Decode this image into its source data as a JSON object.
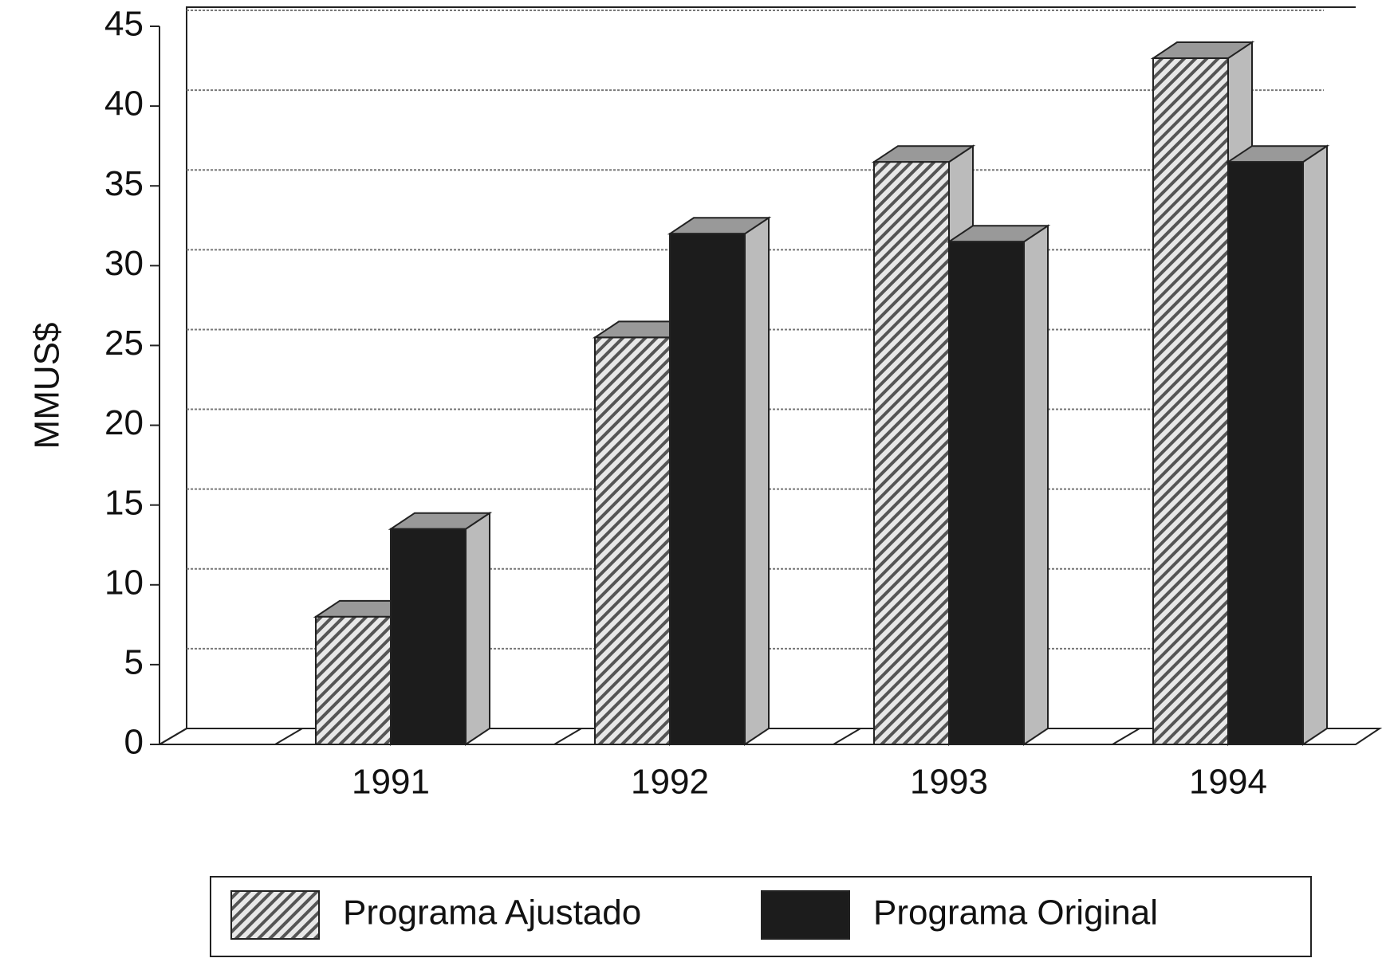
{
  "chart_data": {
    "type": "bar3d",
    "y_label": "MMUS$",
    "categories": [
      "1991",
      "1992",
      "1993",
      "1994"
    ],
    "series": [
      {
        "name": "Programa Ajustado",
        "color": "#555555",
        "values": [
          8,
          25.5,
          36.5,
          43
        ]
      },
      {
        "name": "Programa Original",
        "color": "#1c1c1c",
        "values": [
          13.5,
          32,
          31.5,
          36.5
        ]
      }
    ],
    "ylim": [
      0,
      45
    ],
    "yticks": [
      0,
      5,
      10,
      15,
      20,
      25,
      30,
      35,
      40,
      45
    ],
    "grid": true,
    "legend": "bottom"
  }
}
